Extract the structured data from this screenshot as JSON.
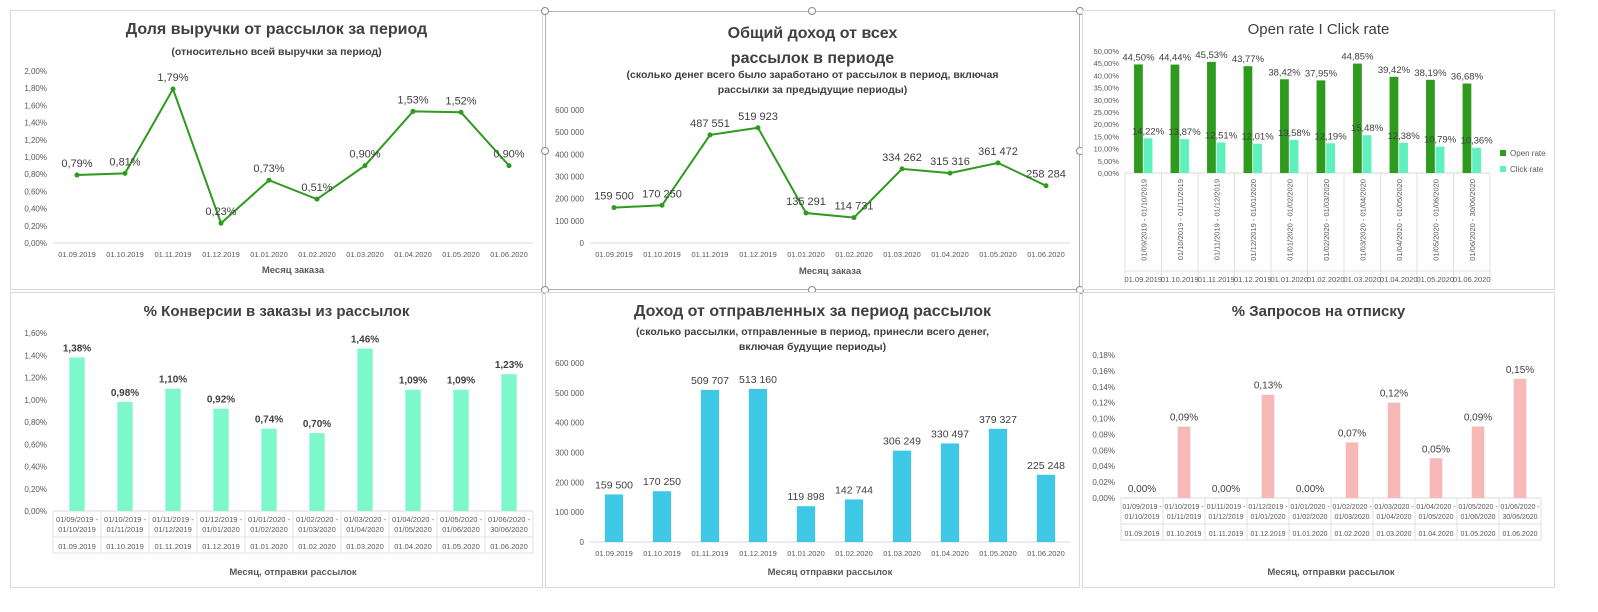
{
  "chart_data": [
    {
      "id": "p1",
      "type": "line",
      "title": "Доля выручки от рассылок за период",
      "subtitle": "(относительно всей выручки за период)",
      "xlabel": "Месяц заказа",
      "ylabel": "",
      "categories": [
        "01.09.2019",
        "01.10.2019",
        "01.11.2019",
        "01.12.2019",
        "01.01.2020",
        "01.02.2020",
        "01.03.2020",
        "01.04.2020",
        "01.05.2020",
        "01.06.2020"
      ],
      "values": [
        0.79,
        0.81,
        1.79,
        0.23,
        0.73,
        0.51,
        0.9,
        1.53,
        1.52,
        0.9
      ],
      "data_labels": [
        "0,79%",
        "0,81%",
        "1,79%",
        "0,23%",
        "0,73%",
        "0,51%",
        "0,90%",
        "1,53%",
        "1,52%",
        "0,90%"
      ],
      "ylim": [
        0,
        2.0
      ],
      "yticks": [
        0,
        0.2,
        0.4,
        0.6,
        0.8,
        1.0,
        1.2,
        1.4,
        1.6,
        1.8,
        2.0
      ],
      "ytick_labels": [
        "0,00%",
        "0,20%",
        "0,40%",
        "0,60%",
        "0,80%",
        "1,00%",
        "1,20%",
        "1,40%",
        "1,60%",
        "1,80%",
        "2,00%"
      ],
      "grid": false,
      "color": "#2e9a1e"
    },
    {
      "id": "p2",
      "type": "line",
      "title": "Общий доход от всех рассылок в периоде",
      "subtitle": "(сколько денег всего было заработано от рассылок в период, включая рассылки за предыдущие периоды)",
      "xlabel": "Месяц заказа",
      "ylabel": "",
      "categories": [
        "01.09.2019",
        "01.10.2019",
        "01.11.2019",
        "01.12.2019",
        "01.01.2020",
        "01.02.2020",
        "01.03.2020",
        "01.04.2020",
        "01.05.2020",
        "01.06.2020"
      ],
      "values": [
        159500,
        170250,
        487551,
        519923,
        135291,
        114731,
        334262,
        315316,
        361472,
        258284
      ],
      "data_labels": [
        "159 500",
        "170 250",
        "487 551",
        "519 923",
        "135 291",
        "114 731",
        "334 262",
        "315 316",
        "361 472",
        "258 284"
      ],
      "ylim": [
        0,
        600000
      ],
      "yticks": [
        0,
        100000,
        200000,
        300000,
        400000,
        500000,
        600000
      ],
      "ytick_labels": [
        "0",
        "100 000",
        "200 000",
        "300 000",
        "400 000",
        "500 000",
        "600 000"
      ],
      "grid": false,
      "color": "#2e9a1e"
    },
    {
      "id": "p3",
      "type": "bar",
      "title": "Open rate I Click rate",
      "xlabel": "",
      "ylabel": "",
      "periods": [
        "01/09/2019 - 01/10/2019",
        "01/10/2019 - 01/11/2019",
        "01/11/2019 - 01/12/2019",
        "01/12/2019 - 01/01/2020",
        "01/01/2020 - 01/02/2020",
        "01/02/2020 - 01/03/2020",
        "01/03/2020 - 01/04/2020",
        "01/04/2020 - 01/05/2020",
        "01/05/2020 - 01/06/2020",
        "01/06/2020 - 30/06/2020"
      ],
      "categories": [
        "01.09.2019",
        "01.10.2019",
        "01.11.2019",
        "01.12.2019",
        "01.01.2020",
        "01.02.2020",
        "01.03.2020",
        "01.04.2020",
        "01.05.2020",
        "01.06.2020"
      ],
      "series": [
        {
          "name": "Open rate",
          "color": "#2e9a1e",
          "values": [
            44.5,
            44.44,
            45.53,
            43.77,
            38.42,
            37.95,
            44.85,
            39.42,
            38.19,
            36.68
          ],
          "labels": [
            "44,50%",
            "44,44%",
            "45,53%",
            "43,77%",
            "38,42%",
            "37,95%",
            "44,85%",
            "39,42%",
            "38,19%",
            "36,68%"
          ]
        },
        {
          "name": "Click rate",
          "color": "#5ef0bd",
          "values": [
            14.22,
            13.87,
            12.51,
            12.01,
            13.58,
            12.19,
            15.48,
            12.38,
            10.79,
            10.36
          ],
          "labels": [
            "14,22%",
            "13,87%",
            "12,51%",
            "12,01%",
            "13,58%",
            "12,19%",
            "15,48%",
            "12,38%",
            "10,79%",
            "10,36%"
          ]
        }
      ],
      "ylim": [
        0,
        50
      ],
      "yticks": [
        0,
        5,
        10,
        15,
        20,
        25,
        30,
        35,
        40,
        45,
        50
      ],
      "ytick_labels": [
        "0,00%",
        "5,00%",
        "10,00%",
        "15,00%",
        "20,00%",
        "25,00%",
        "30,00%",
        "35,00%",
        "40,00%",
        "45,00%",
        "50,00%"
      ],
      "legend": "right",
      "grid": false
    },
    {
      "id": "p4",
      "type": "bar",
      "title": "% Конверсии в заказы из рассылок",
      "xlabel": "Месяц, отправки рассылок",
      "ylabel": "",
      "periods": [
        "01/09/2019 - 01/10/2019",
        "01/10/2019 - 01/11/2019",
        "01/11/2019 - 01/12/2019",
        "01/12/2019 - 01/01/2020",
        "01/01/2020 - 01/02/2020",
        "01/02/2020 - 01/03/2020",
        "01/03/2020 - 01/04/2020",
        "01/04/2020 - 01/05/2020",
        "01/05/2020 - 01/06/2020",
        "01/06/2020 - 30/06/2020"
      ],
      "categories": [
        "01.09.2019",
        "01.10.2019",
        "01.11.2019",
        "01.12.2019",
        "01.01.2020",
        "01.02.2020",
        "01.03.2020",
        "01.04.2020",
        "01.05.2020",
        "01.06.2020"
      ],
      "values": [
        1.38,
        0.98,
        1.1,
        0.92,
        0.74,
        0.7,
        1.46,
        1.09,
        1.09,
        1.23
      ],
      "data_labels": [
        "1,38%",
        "0,98%",
        "1,10%",
        "0,92%",
        "0,74%",
        "0,70%",
        "1,46%",
        "1,09%",
        "1,09%",
        "1,23%"
      ],
      "ylim": [
        0,
        1.6
      ],
      "yticks": [
        0,
        0.2,
        0.4,
        0.6,
        0.8,
        1.0,
        1.2,
        1.4,
        1.6
      ],
      "ytick_labels": [
        "0,00%",
        "0,20%",
        "0,40%",
        "0,60%",
        "0,80%",
        "1,00%",
        "1,20%",
        "1,40%",
        "1,60%"
      ],
      "grid": false,
      "color": "#7ef7ca"
    },
    {
      "id": "p5",
      "type": "bar",
      "title": "Доход от отправленных за период рассылок",
      "subtitle": "(сколько рассылки,  отправленные в период, принесли всего денег, включая будущие периоды)",
      "xlabel": "Месяц отправки рассылок",
      "ylabel": "",
      "categories": [
        "01.09.2019",
        "01.10.2019",
        "01.11.2019",
        "01.12.2019",
        "01.01.2020",
        "01.02.2020",
        "01.03.2020",
        "01.04.2020",
        "01.05.2020",
        "01.06.2020"
      ],
      "values": [
        159500,
        170250,
        509707,
        513160,
        119898,
        142744,
        306249,
        330497,
        379327,
        225248
      ],
      "data_labels": [
        "159 500",
        "170 250",
        "509 707",
        "513 160",
        "119 898",
        "142 744",
        "306 249",
        "330 497",
        "379 327",
        "225 248"
      ],
      "ylim": [
        0,
        600000
      ],
      "yticks": [
        0,
        100000,
        200000,
        300000,
        400000,
        500000,
        600000
      ],
      "ytick_labels": [
        "0",
        "100 000",
        "200 000",
        "300 000",
        "400 000",
        "500 000",
        "600 000"
      ],
      "grid": false,
      "color": "#3ec8e6"
    },
    {
      "id": "p6",
      "type": "bar",
      "title": "% Запросов на отписку",
      "xlabel": "Месяц, отправки рассылок",
      "ylabel": "",
      "periods": [
        "01/09/2019 - 01/10/2019",
        "01/10/2019 - 01/11/2019",
        "01/11/2019 - 01/12/2019",
        "01/12/2019 - 01/01/2020",
        "01/01/2020 - 01/02/2020",
        "01/02/2020 - 01/03/2020",
        "01/03/2020 - 01/04/2020",
        "01/04/2020 - 01/05/2020",
        "01/05/2020 - 01/06/2020",
        "01/06/2020 - 30/06/2020"
      ],
      "categories": [
        "01.09.2019",
        "01.10.2019",
        "01.11.2019",
        "01.12.2019",
        "01.01.2020",
        "01.02.2020",
        "01.03.2020",
        "01.04.2020",
        "01.05.2020",
        "01.06.2020"
      ],
      "values": [
        0.0,
        0.09,
        0.0,
        0.13,
        0.0,
        0.07,
        0.12,
        0.05,
        0.09,
        0.15
      ],
      "data_labels": [
        "0,00%",
        "0,09%",
        "0,00%",
        "0,13%",
        "0,00%",
        "0,07%",
        "0,12%",
        "0,05%",
        "0,09%",
        "0,15%"
      ],
      "ylim": [
        0,
        0.18
      ],
      "yticks": [
        0,
        0.02,
        0.04,
        0.06,
        0.08,
        0.1,
        0.12,
        0.14,
        0.16,
        0.18
      ],
      "ytick_labels": [
        "0,00%",
        "0,02%",
        "0,04%",
        "0,06%",
        "0,08%",
        "0,10%",
        "0,12%",
        "0,14%",
        "0,16%",
        "0,18%"
      ],
      "grid": false,
      "color": "#f7b8b8"
    }
  ]
}
